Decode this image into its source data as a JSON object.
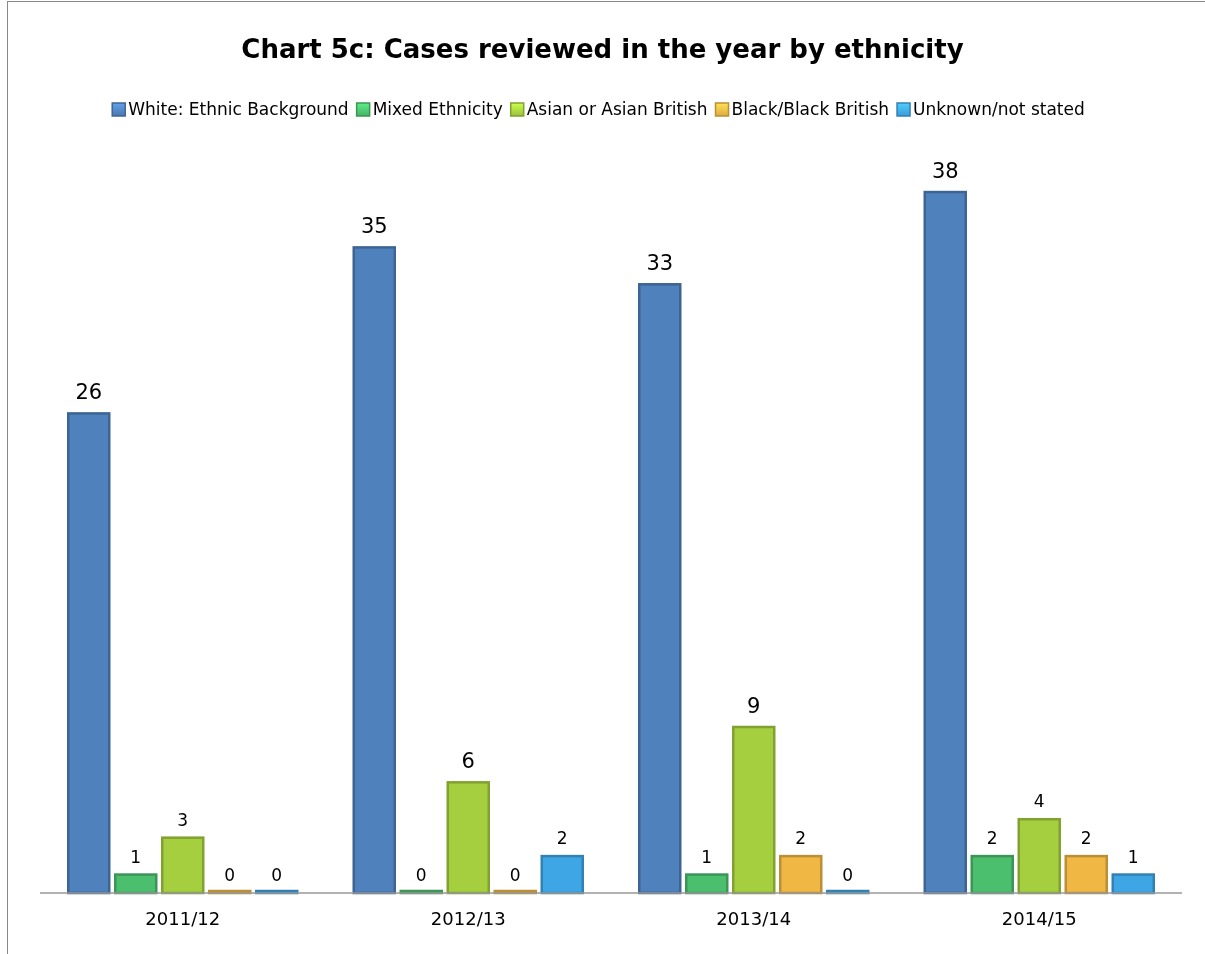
{
  "chart_data": {
    "type": "bar",
    "title": "Chart 5c: Cases reviewed in the year by ethnicity",
    "categories": [
      "2011/12",
      "2012/13",
      "2013/14",
      "2014/15"
    ],
    "series": [
      {
        "name": "White: Ethnic Background",
        "color": "#4f81bd",
        "values": [
          26,
          35,
          33,
          38
        ]
      },
      {
        "name": "Mixed Ethnicity",
        "color": "#4cbf6e",
        "values": [
          1,
          0,
          1,
          2
        ]
      },
      {
        "name": "Asian or Asian British",
        "color": "#a5cf3f",
        "values": [
          3,
          6,
          9,
          4
        ]
      },
      {
        "name": "Black/Black British",
        "color": "#f0b745",
        "values": [
          0,
          0,
          2,
          2
        ]
      },
      {
        "name": "Unknown/not stated",
        "color": "#3fa6e6",
        "values": [
          0,
          2,
          0,
          1
        ]
      }
    ],
    "data_labels": true,
    "legend": "top",
    "grid": false
  }
}
